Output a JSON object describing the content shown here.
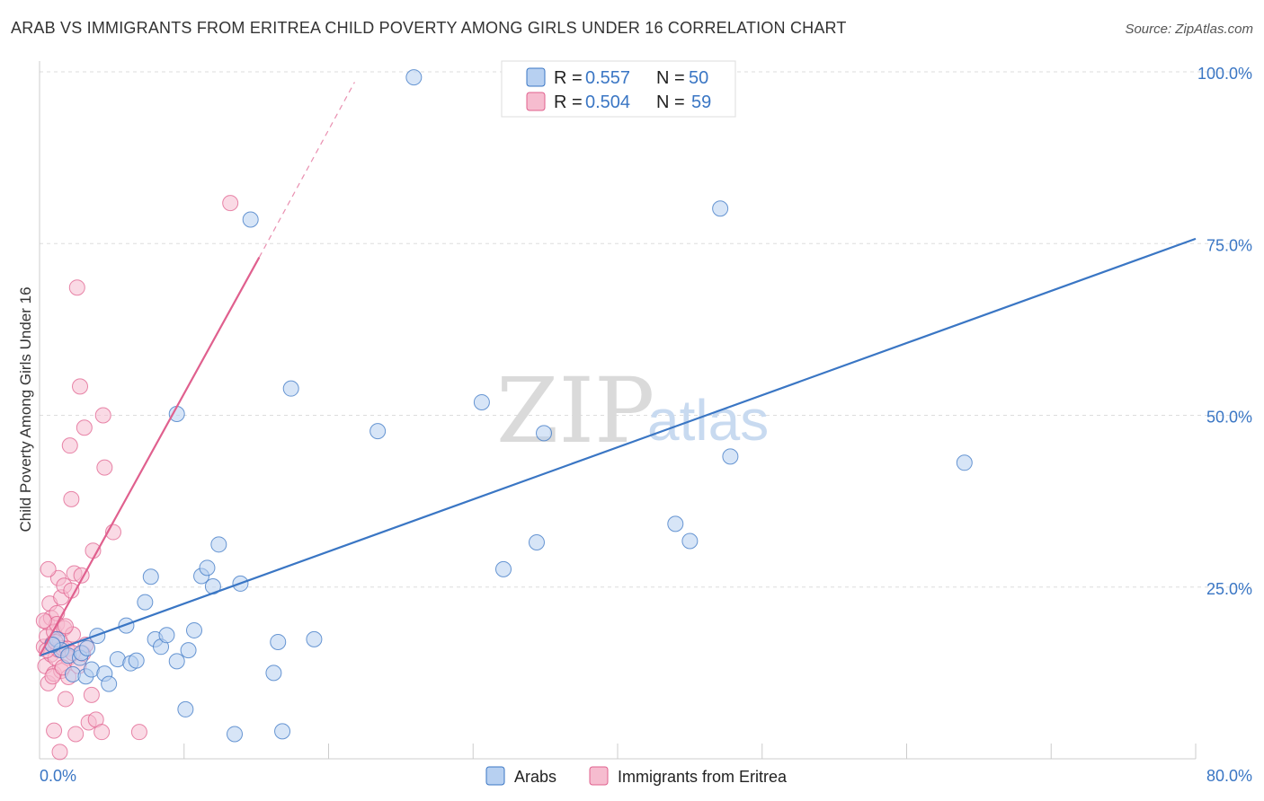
{
  "title": "ARAB VS IMMIGRANTS FROM ERITREA CHILD POVERTY AMONG GIRLS UNDER 16 CORRELATION CHART",
  "source": "Source: ZipAtlas.com",
  "watermark": {
    "zip": "ZIP",
    "atlas": "atlas"
  },
  "colors": {
    "arabs": "#3a76c4",
    "arabs_fill": "#b7d0f1",
    "eritrea": "#e0608e",
    "eritrea_fill": "#f6bccf",
    "grid": "#dddddd",
    "axis_text": "#3a76c4"
  },
  "legend": {
    "rows": [
      {
        "r_label": "R = ",
        "r_value": "0.557",
        "n_label": "N = ",
        "n_value": "50"
      },
      {
        "r_label": "R = ",
        "r_value": "0.504",
        "n_label": "N = ",
        "n_value": "59"
      }
    ]
  },
  "chart_data": {
    "type": "scatter",
    "title": "ARAB VS IMMIGRANTS FROM ERITREA CHILD POVERTY AMONG GIRLS UNDER 16 CORRELATION CHART",
    "xlabel": "",
    "ylabel": "Child Poverty Among Girls Under 16",
    "xlim": [
      0,
      80
    ],
    "ylim": [
      0,
      100
    ],
    "x_tick_labels": [
      "0.0%",
      "80.0%"
    ],
    "y_ticks": [
      25,
      50,
      75,
      100
    ],
    "y_tick_labels": [
      "25.0%",
      "50.0%",
      "75.0%",
      "100.0%"
    ],
    "legend_position": "top-center",
    "series": [
      {
        "name": "Arabs",
        "r": 0.557,
        "n": 50,
        "trend": {
          "x1": 0,
          "y1": 15,
          "x2": 80,
          "y2": 75.7
        },
        "points": [
          [
            1.2,
            17.4
          ],
          [
            1.5,
            15.8
          ],
          [
            2.0,
            15.0
          ],
          [
            2.3,
            12.3
          ],
          [
            2.8,
            14.7
          ],
          [
            3.2,
            12.0
          ],
          [
            3.6,
            13.0
          ],
          [
            4.0,
            17.9
          ],
          [
            4.5,
            12.4
          ],
          [
            4.8,
            10.9
          ],
          [
            5.4,
            14.5
          ],
          [
            6.0,
            19.4
          ],
          [
            6.3,
            13.9
          ],
          [
            6.7,
            14.3
          ],
          [
            7.3,
            22.8
          ],
          [
            7.7,
            26.5
          ],
          [
            8.0,
            17.4
          ],
          [
            8.4,
            16.3
          ],
          [
            8.8,
            18.0
          ],
          [
            9.5,
            14.2
          ],
          [
            10.1,
            7.2
          ],
          [
            10.3,
            15.8
          ],
          [
            10.7,
            18.7
          ],
          [
            11.2,
            26.6
          ],
          [
            11.6,
            27.8
          ],
          [
            12.0,
            25.1
          ],
          [
            12.4,
            31.2
          ],
          [
            13.5,
            3.6
          ],
          [
            13.9,
            25.5
          ],
          [
            14.6,
            78.5
          ],
          [
            16.2,
            12.5
          ],
          [
            16.5,
            17.0
          ],
          [
            16.8,
            4.0
          ],
          [
            17.4,
            53.9
          ],
          [
            19.0,
            17.4
          ],
          [
            9.5,
            50.2
          ],
          [
            23.4,
            47.7
          ],
          [
            25.9,
            99.2
          ],
          [
            30.6,
            51.9
          ],
          [
            32.1,
            27.6
          ],
          [
            34.4,
            31.5
          ],
          [
            34.9,
            47.4
          ],
          [
            44.0,
            34.2
          ],
          [
            45.0,
            31.7
          ],
          [
            47.1,
            80.1
          ],
          [
            47.8,
            44.0
          ],
          [
            64.0,
            43.1
          ],
          [
            2.9,
            15.4
          ],
          [
            3.3,
            16.1
          ],
          [
            0.9,
            16.6
          ]
        ]
      },
      {
        "name": "Immigrants from Eritrea",
        "r": 0.504,
        "n": 59,
        "trend": {
          "x1": 0,
          "y1": 15,
          "x2": 15.2,
          "y2": 73.0
        },
        "trend_dashed": {
          "x1": 15.2,
          "y1": 73.0,
          "x2": 21.8,
          "y2": 98.5
        },
        "points": [
          [
            0.3,
            16.3
          ],
          [
            0.4,
            13.5
          ],
          [
            0.5,
            17.8
          ],
          [
            0.5,
            19.9
          ],
          [
            0.6,
            11.0
          ],
          [
            0.7,
            22.6
          ],
          [
            0.8,
            15.2
          ],
          [
            0.8,
            20.5
          ],
          [
            0.9,
            16.8
          ],
          [
            1.0,
            12.4
          ],
          [
            1.0,
            18.5
          ],
          [
            1.1,
            14.7
          ],
          [
            1.2,
            21.2
          ],
          [
            1.2,
            19.6
          ],
          [
            1.3,
            15.9
          ],
          [
            1.3,
            26.3
          ],
          [
            1.4,
            17.3
          ],
          [
            1.5,
            12.8
          ],
          [
            1.5,
            23.5
          ],
          [
            1.6,
            16.1
          ],
          [
            1.7,
            19.0
          ],
          [
            1.7,
            25.2
          ],
          [
            1.8,
            8.7
          ],
          [
            1.9,
            16.0
          ],
          [
            2.0,
            11.9
          ],
          [
            2.0,
            14.7
          ],
          [
            2.1,
            45.6
          ],
          [
            2.2,
            37.8
          ],
          [
            2.2,
            24.5
          ],
          [
            2.3,
            18.1
          ],
          [
            2.4,
            27.0
          ],
          [
            2.5,
            3.6
          ],
          [
            2.6,
            68.6
          ],
          [
            2.7,
            13.5
          ],
          [
            2.8,
            54.2
          ],
          [
            2.9,
            26.7
          ],
          [
            3.0,
            15.3
          ],
          [
            3.1,
            48.2
          ],
          [
            3.2,
            16.6
          ],
          [
            3.4,
            5.3
          ],
          [
            3.6,
            9.3
          ],
          [
            3.7,
            30.3
          ],
          [
            3.9,
            5.7
          ],
          [
            4.3,
            3.9
          ],
          [
            4.4,
            50.0
          ],
          [
            4.5,
            42.4
          ],
          [
            5.1,
            33.0
          ],
          [
            6.9,
            3.9
          ],
          [
            13.2,
            80.9
          ],
          [
            0.6,
            27.6
          ],
          [
            1.0,
            4.1
          ],
          [
            1.4,
            1.0
          ],
          [
            0.3,
            20.1
          ],
          [
            0.9,
            12.0
          ],
          [
            1.6,
            13.3
          ],
          [
            2.3,
            15.4
          ],
          [
            0.5,
            15.8
          ],
          [
            1.1,
            17.0
          ],
          [
            1.8,
            19.3
          ]
        ]
      }
    ]
  }
}
